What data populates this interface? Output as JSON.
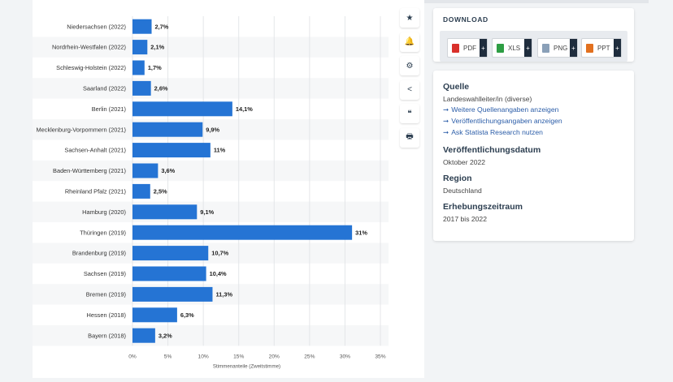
{
  "toolbar": {
    "items": [
      {
        "name": "star-icon",
        "glyph": "★"
      },
      {
        "name": "bell-icon",
        "glyph": "🔔"
      },
      {
        "name": "gear-icon",
        "glyph": "⚙"
      },
      {
        "name": "share-icon",
        "glyph": "<"
      },
      {
        "name": "quote-icon",
        "glyph": "❝"
      },
      {
        "name": "print-icon",
        "glyph": "🖶"
      }
    ]
  },
  "download": {
    "title": "DOWNLOAD",
    "buttons": [
      {
        "label": "PDF",
        "color": "#d9302b",
        "plus": "+"
      },
      {
        "label": "XLS",
        "color": "#2e9e44",
        "plus": "+"
      },
      {
        "label": "PNG",
        "color": "#8aa0b8",
        "plus": "+"
      },
      {
        "label": "PPT",
        "color": "#e2701f",
        "plus": "+"
      }
    ]
  },
  "source": {
    "quelle_heading": "Quelle",
    "quelle_text": "Landeswahlleiter/in (diverse)",
    "links": [
      "Weitere Quellenangaben anzeigen",
      "Veröffentlichungsangaben anzeigen",
      "Ask Statista Research nutzen"
    ],
    "date_heading": "Veröffentlichungsdatum",
    "date_value": "Oktober 2022",
    "region_heading": "Region",
    "region_value": "Deutschland",
    "period_heading": "Erhebungszeitraum",
    "period_value": "2017 bis 2022"
  },
  "chart_data": {
    "type": "bar",
    "orientation": "horizontal",
    "bar_color": "#2574d4",
    "categories": [
      "Niedersachsen (2022)",
      "Nordrhein-Westfalen (2022)",
      "Schleswig-Holstein (2022)",
      "Saarland (2022)",
      "Berlin (2021)",
      "Mecklenburg-Vorpommern (2021)",
      "Sachsen-Anhalt (2021)",
      "Baden-Württemberg (2021)",
      "Rheinland Pfalz (2021)",
      "Hamburg (2020)",
      "Thüringen (2019)",
      "Brandenburg (2019)",
      "Sachsen (2019)",
      "Bremen (2019)",
      "Hessen (2018)",
      "Bayern (2018)"
    ],
    "values": [
      2.7,
      2.1,
      1.7,
      2.6,
      14.1,
      9.9,
      11,
      3.6,
      2.5,
      9.1,
      31,
      10.7,
      10.4,
      11.3,
      6.3,
      3.2
    ],
    "value_labels": [
      "2,7%",
      "2,1%",
      "1,7%",
      "2,6%",
      "14,1%",
      "9,9%",
      "11%",
      "3,6%",
      "2,5%",
      "9,1%",
      "31%",
      "10,7%",
      "10,4%",
      "11,3%",
      "6,3%",
      "3,2%"
    ],
    "xticks": [
      0,
      5,
      10,
      15,
      20,
      25,
      30,
      35
    ],
    "xtick_labels": [
      "0%",
      "5%",
      "10%",
      "15%",
      "20%",
      "25%",
      "30%",
      "35%"
    ],
    "xlabel": "Stimmenanteile (Zweitstimme)",
    "xlim": [
      0,
      35
    ],
    "grid": true
  }
}
